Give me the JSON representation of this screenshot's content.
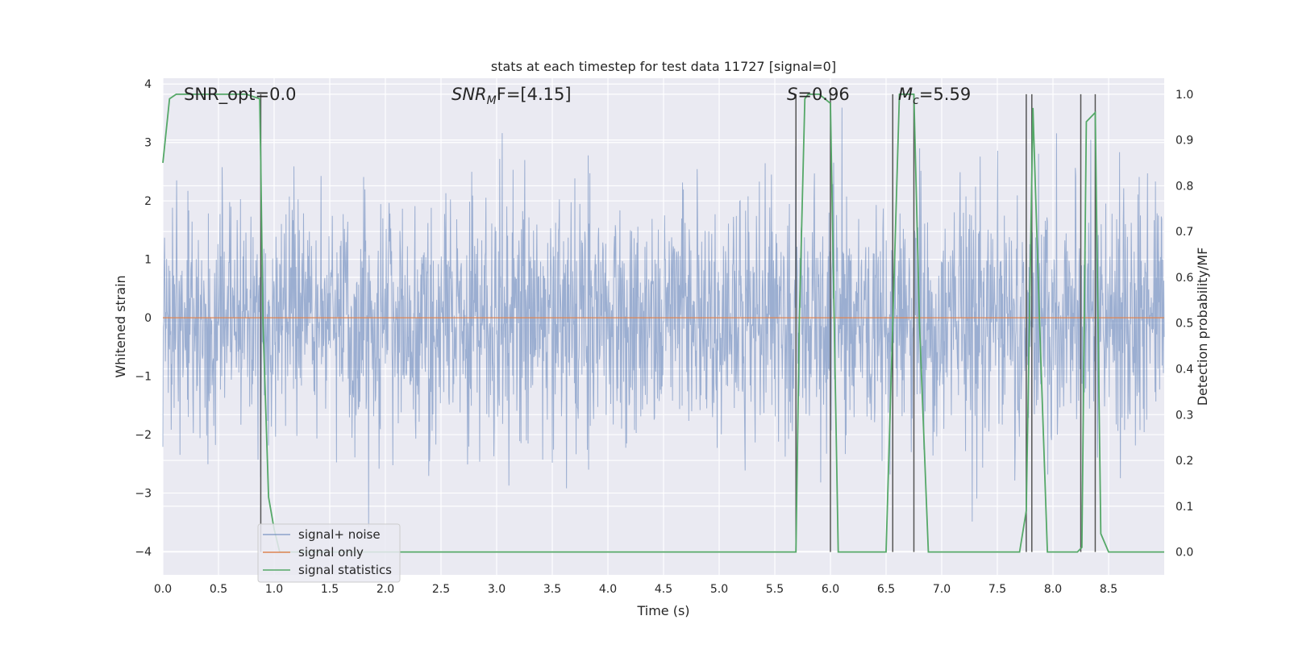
{
  "chart_data": {
    "type": "line",
    "title": "stats at each timestep for test data 11727 [signal=0]",
    "xlabel": "Time (s)",
    "ylabel": "Whitened strain",
    "y2label": "Detection probability/MF",
    "xlim": [
      0.0,
      9.0
    ],
    "ylim": [
      -4.4,
      4.1
    ],
    "y2lim": [
      -0.05,
      1.035
    ],
    "xticks": [
      "0.0",
      "0.5",
      "1.0",
      "1.5",
      "2.0",
      "2.5",
      "3.0",
      "3.5",
      "4.0",
      "4.5",
      "5.0",
      "5.5",
      "6.0",
      "6.5",
      "7.0",
      "7.5",
      "8.0",
      "8.5"
    ],
    "yticks": [
      "4",
      "3",
      "2",
      "1",
      "0",
      "−1",
      "−2",
      "−3",
      "−4"
    ],
    "y2ticks": [
      "1.0",
      "0.9",
      "0.8",
      "0.7",
      "0.6",
      "0.5",
      "0.4",
      "0.3",
      "0.2",
      "0.1",
      "0.0"
    ],
    "grid": true,
    "legend_position": "lower-left",
    "legend": [
      {
        "label": "signal+ noise",
        "color": "#4c72b0"
      },
      {
        "label": "signal only",
        "color": "#dd8452"
      },
      {
        "label": "signal statistics",
        "color": "#55a868"
      }
    ],
    "annotations": {
      "snr_opt": "SNR_opt=0.0",
      "snr_mf_main": "SNR",
      "snr_mf_sub": "M",
      "snr_mf_rest": "F=[4.15]",
      "s_main": "S",
      "s_rest": "=0.96",
      "mc_main": "M",
      "mc_sub": "c",
      "mc_rest": "=5.59"
    },
    "noise_band_y": [
      -2.5,
      2.5
    ],
    "signal_only_value": 0.0,
    "vertical_lines_x": [
      0.88,
      5.69,
      6.0,
      6.56,
      6.75,
      7.76,
      7.81,
      8.25,
      8.38
    ],
    "signal_statistics": {
      "x": [
        0.0,
        0.06,
        0.12,
        0.5,
        0.75,
        0.87,
        0.88,
        0.9,
        0.95,
        1.0,
        1.05,
        1.5,
        2.0,
        3.0,
        4.0,
        5.0,
        5.5,
        5.69,
        5.72,
        5.77,
        5.8,
        5.9,
        5.95,
        6.0,
        6.07,
        6.1,
        6.5,
        6.56,
        6.62,
        6.7,
        6.75,
        6.8,
        6.88,
        7.0,
        7.5,
        7.7,
        7.76,
        7.82,
        7.88,
        7.95,
        8.1,
        8.22,
        8.26,
        8.3,
        8.38,
        8.43,
        8.5,
        9.0
      ],
      "y": [
        0.85,
        0.99,
        1.0,
        1.0,
        1.0,
        0.99,
        0.85,
        0.5,
        0.12,
        0.05,
        0.0,
        0.0,
        0.0,
        0.0,
        0.0,
        0.0,
        0.0,
        0.0,
        0.5,
        0.99,
        1.0,
        1.0,
        0.99,
        0.98,
        0.0,
        0.0,
        0.0,
        0.5,
        1.0,
        1.0,
        1.0,
        0.5,
        0.0,
        0.0,
        0.0,
        0.0,
        0.09,
        0.97,
        0.5,
        0.0,
        0.0,
        0.0,
        0.01,
        0.94,
        0.96,
        0.04,
        0.0,
        0.0
      ]
    }
  }
}
